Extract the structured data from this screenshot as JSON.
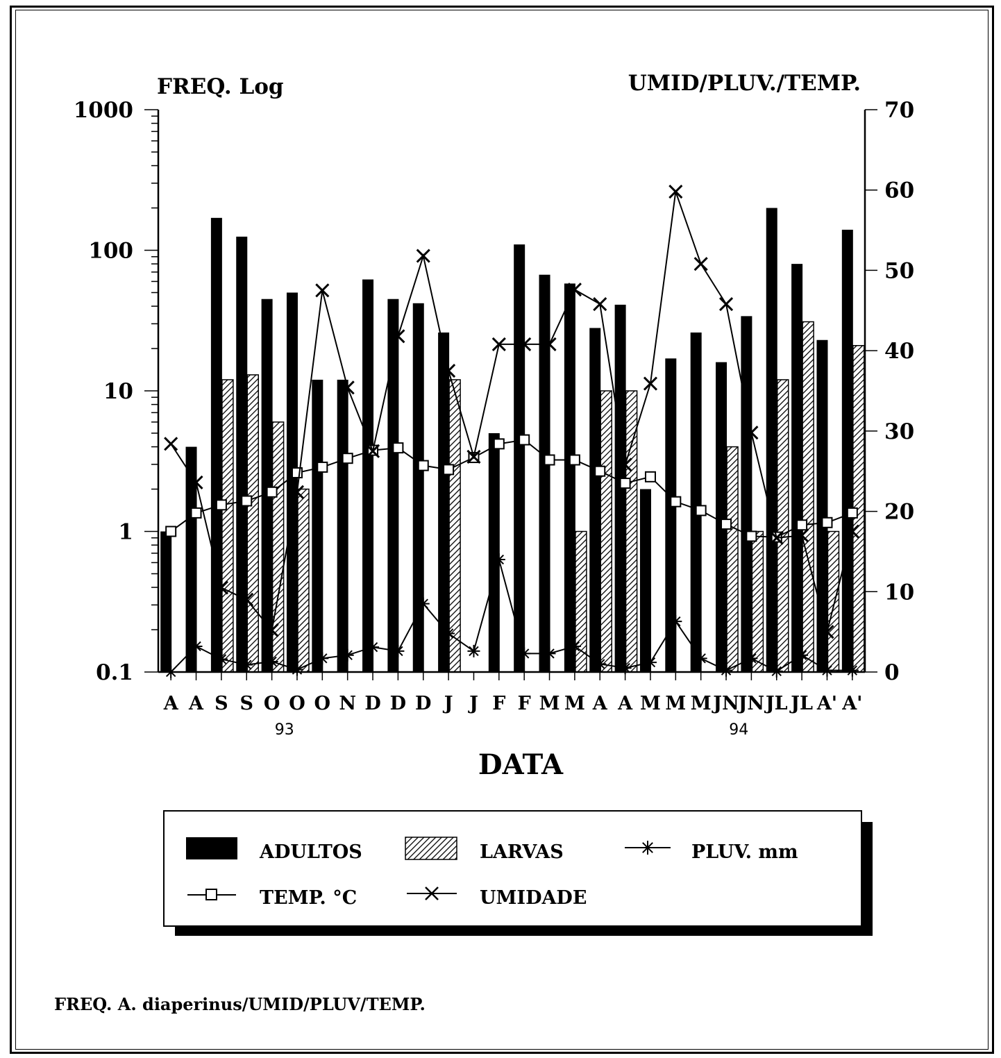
{
  "caption": "FREQ. A. diaperinus/UMID/PLUV/TEMP.",
  "chart_data": {
    "type": "bar",
    "title": "",
    "left_axis_label": "FREQ. Log",
    "right_axis_label": "UMID/PLUV./TEMP.",
    "xlabel": "DATA",
    "left_scale": "log",
    "left_ylim": [
      0.1,
      1000
    ],
    "left_ticks": [
      "0.1",
      "1",
      "10",
      "100",
      "1000"
    ],
    "right_ylim": [
      0,
      70
    ],
    "right_ticks": [
      "0",
      "10",
      "20",
      "30",
      "40",
      "50",
      "60",
      "70"
    ],
    "categories": [
      "A",
      "A",
      "S",
      "S",
      "O",
      "O",
      "O",
      "N",
      "D",
      "D",
      "D",
      "J",
      "J",
      "F",
      "F",
      "M",
      "M",
      "A",
      "A",
      "M",
      "M",
      "M",
      "JN",
      "JN",
      "JL",
      "JL",
      "A'",
      "A'"
    ],
    "year_labels": [
      {
        "label": "93",
        "at_index": 4.5
      },
      {
        "label": "94",
        "at_index": 22.5
      }
    ],
    "series": [
      {
        "name": "ADULTOS",
        "kind": "bar",
        "axis": "left",
        "fill": "solid",
        "values": [
          1,
          4,
          170,
          125,
          45,
          50,
          12,
          12,
          62,
          45,
          42,
          26,
          null,
          5,
          110,
          67,
          58,
          28,
          41,
          2,
          17,
          26,
          16,
          34,
          200,
          80,
          23,
          140
        ]
      },
      {
        "name": "LARVAS",
        "kind": "bar",
        "axis": "left",
        "fill": "hatched",
        "values": [
          null,
          null,
          12,
          13,
          6,
          2,
          null,
          null,
          null,
          null,
          null,
          12,
          null,
          null,
          null,
          null,
          1,
          10,
          10,
          null,
          null,
          null,
          4,
          1,
          12,
          31,
          1,
          21
        ]
      },
      {
        "name": "PLUV. mm",
        "kind": "line",
        "axis": "right",
        "marker": "asterisk",
        "values": [
          0,
          3.2,
          1.6,
          0.9,
          1.3,
          0.3,
          1.7,
          2.1,
          3.1,
          2.6,
          8.5,
          4.8,
          2.6,
          14,
          2.3,
          2.3,
          3.2,
          1,
          0.5,
          1.2,
          6.3,
          1.7,
          0.2,
          1.7,
          0.1,
          2.1,
          0.2,
          0.2
        ]
      },
      {
        "name": "TEMP. °C",
        "kind": "line",
        "axis": "right",
        "marker": "square",
        "values": [
          17.5,
          19.8,
          20.8,
          21.3,
          22.4,
          24.8,
          25.5,
          26.6,
          27.6,
          27.9,
          25.7,
          25.2,
          26.7,
          28.4,
          28.9,
          26.4,
          26.4,
          25,
          23.5,
          24.3,
          21.2,
          20.1,
          18.4,
          16.9,
          16.8,
          18.3,
          18.6,
          19.8
        ]
      },
      {
        "name": "UMIDADE",
        "kind": "line",
        "axis": "right",
        "marker": "x",
        "values": [
          28.4,
          23.6,
          10.5,
          9,
          5.2,
          22.4,
          47.5,
          35.4,
          27.5,
          41.8,
          51.8,
          37.5,
          26.8,
          40.8,
          40.8,
          40.8,
          47.6,
          45.8,
          25.8,
          35.9,
          59.8,
          50.8,
          45.8,
          29.8,
          16.7,
          17,
          5,
          17.5
        ]
      }
    ],
    "legend": {
      "placement": "bottom",
      "entries": [
        {
          "label": "ADULTOS",
          "symbol": "solid-bar"
        },
        {
          "label": "LARVAS",
          "symbol": "hatched-bar"
        },
        {
          "label": "PLUV. mm",
          "symbol": "asterisk-line"
        },
        {
          "label": "TEMP. °C",
          "symbol": "square-line"
        },
        {
          "label": "UMIDADE",
          "symbol": "x-line"
        }
      ]
    },
    "grid": false
  }
}
